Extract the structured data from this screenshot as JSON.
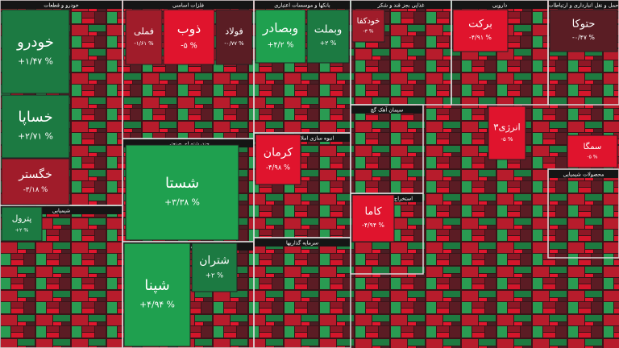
{
  "chart_data": {
    "type": "treemap",
    "sectors": [
      "خودرو و قطعات",
      "فلزات اساسی",
      "بانکها و موسسات اعتباری",
      "غذایی بجز قند و شکر",
      "دارویی",
      "حمل و نقل انبارداری و ارتباطات",
      "چندرشته ای صنعتی",
      "انبوه سازی املاک و مستغلات",
      "فرآورده های نفتی",
      "شیمیایی",
      "سیمان آهک گچ",
      "استخراج کانه های فلزی",
      "محصولات شیمیایی",
      "سرمایه گذاریها"
    ],
    "categories": [
      "خودرو",
      "خساپا",
      "خگستر",
      "شستا",
      "فملی",
      "ذوب",
      "فولاد",
      "وبصادر",
      "وبملت",
      "برکت",
      "حتوکا",
      "خودکفا",
      "شپنا",
      "شتران",
      "کرمان",
      "سمگا",
      "کاما",
      "انرژی۳",
      "پترول"
    ],
    "values": [
      1.47,
      2.71,
      -3.18,
      3.38,
      -1.61,
      -5,
      -0.77,
      4.2,
      2,
      -4.91,
      -0.47,
      -3,
      4.94,
      2,
      -4.98,
      -5,
      -4.94,
      -5,
      2
    ],
    "value_labels": [
      "+۱/۴۷ %",
      "+۲/۷۱ %",
      "-۳/۱۸ %",
      "+۳/۳۸ %",
      "-۱/۶۱ %",
      "-۵ %",
      "-۰/۷۷ %",
      "+۴/۲ %",
      "+۲ %",
      "-۴/۹۱ %",
      "-۰/۴۷ %",
      "-۳ %",
      "+۴/۹۴ %",
      "+۲ %",
      "-۴/۹۸ %",
      "-۵ %",
      "-۴/۹۴ %",
      "-۵ %",
      "+۲ %"
    ]
  }
}
